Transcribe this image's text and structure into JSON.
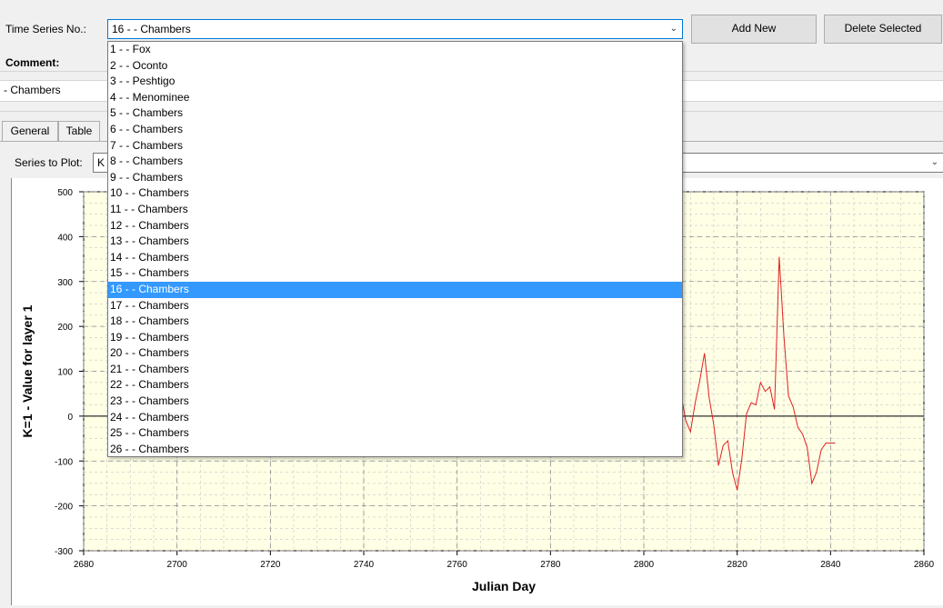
{
  "header": {
    "series_label": "Time Series No.:",
    "series_value": "16 - - Chambers",
    "add_button": "Add New",
    "delete_button": "Delete Selected"
  },
  "comment": {
    "label": "Comment:",
    "value": "- Chambers"
  },
  "tabs": [
    {
      "label": "General"
    },
    {
      "label": "Table"
    }
  ],
  "plot_controls": {
    "series_label": "Series to Plot:",
    "series_value_partial": "K"
  },
  "dropdown": {
    "selected_index": 15,
    "items": [
      "1 - - Fox",
      "2 - - Oconto",
      "3 - - Peshtigo",
      "4 - - Menominee",
      "5 - - Chambers",
      "6 - - Chambers",
      "7 - - Chambers",
      "8 - - Chambers",
      "9 - - Chambers",
      "10 - - Chambers",
      "11 - - Chambers",
      "12 - - Chambers",
      "13 - - Chambers",
      "14 - - Chambers",
      "15 - - Chambers",
      "16 - - Chambers",
      "17 - - Chambers",
      "18 - - Chambers",
      "19 - - Chambers",
      "20 - - Chambers",
      "21 - - Chambers",
      "22 - - Chambers",
      "23 - - Chambers",
      "24 - - Chambers",
      "25 - - Chambers",
      "26 - - Chambers"
    ]
  },
  "chart_data": {
    "type": "line",
    "xlabel": "Julian Day",
    "ylabel": "K=1 - Value for layer 1",
    "xlim": [
      2680,
      2860
    ],
    "ylim": [
      -300,
      500
    ],
    "xticks": [
      2680,
      2700,
      2720,
      2740,
      2760,
      2780,
      2800,
      2820,
      2840,
      2860
    ],
    "yticks": [
      -300,
      -200,
      -100,
      0,
      100,
      200,
      300,
      400,
      500
    ],
    "grid": true,
    "background_color": "#ffffe6",
    "series": [
      {
        "color": "#e02020",
        "x": [
          2808,
          2809,
          2810,
          2811,
          2812,
          2813,
          2814,
          2815,
          2816,
          2817,
          2818,
          2819,
          2820,
          2821,
          2822,
          2823,
          2824,
          2825,
          2826,
          2827,
          2828,
          2829,
          2830,
          2831,
          2832,
          2833,
          2834,
          2835,
          2836,
          2837,
          2838,
          2839,
          2840,
          2841
        ],
        "y": [
          45,
          -10,
          -35,
          30,
          80,
          140,
          40,
          -20,
          -110,
          -65,
          -55,
          -125,
          -165,
          -95,
          5,
          30,
          25,
          75,
          55,
          65,
          15,
          355,
          180,
          45,
          20,
          -25,
          -40,
          -70,
          -150,
          -125,
          -75,
          -60,
          -60,
          -60
        ]
      }
    ]
  }
}
